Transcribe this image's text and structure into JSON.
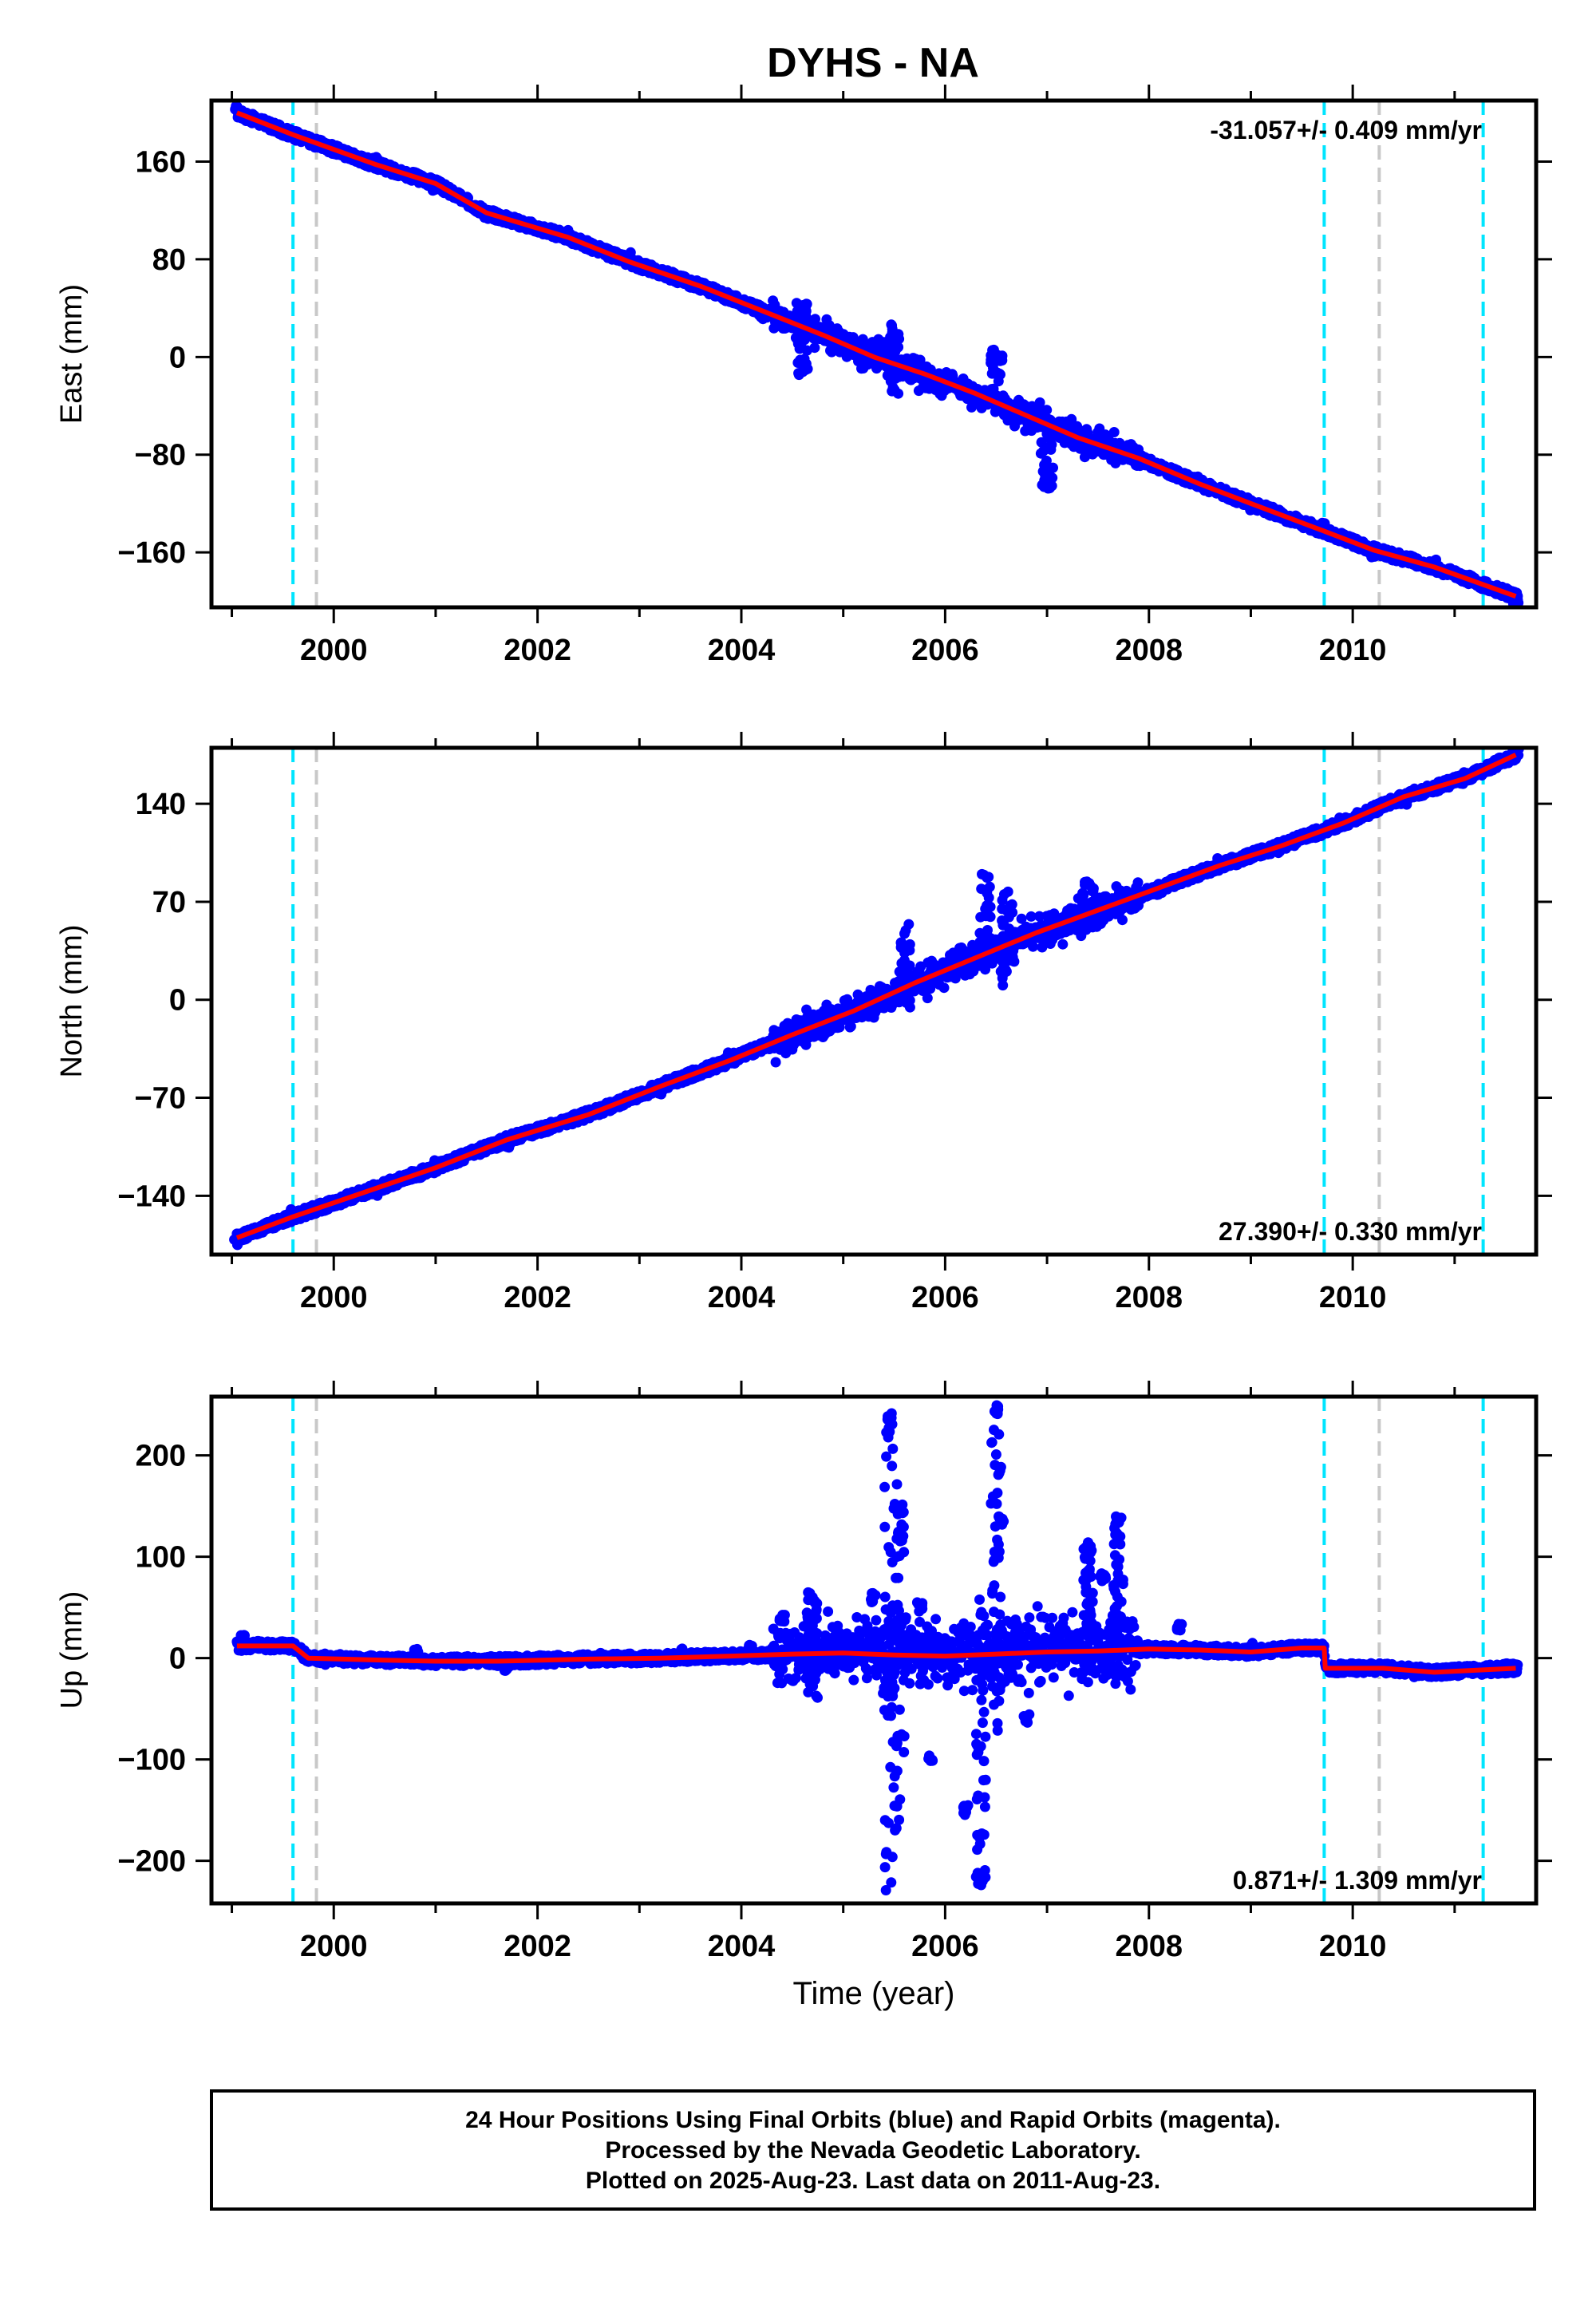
{
  "title": "DYHS - NA",
  "colors": {
    "data": "#0000ff",
    "model": "#ff0000",
    "final_line": "#00e5ff",
    "equipment_line": "#c8c8c8"
  },
  "chart_data": [
    {
      "type": "scatter",
      "name": "east",
      "ylabel": "East (mm)",
      "xlabel": "",
      "xlim": [
        1998.8,
        2011.8
      ],
      "ylim": [
        -205,
        210
      ],
      "yticks": [
        -160,
        -80,
        0,
        80,
        160
      ],
      "ytick_labels": [
        "−160",
        "−80",
        "0",
        "80",
        "160"
      ],
      "xticks": [
        2000,
        2002,
        2004,
        2006,
        2008,
        2010
      ],
      "rate_label": "-31.057+/- 0.409 mm/yr",
      "rate_position": "top-right",
      "series": [
        {
          "name": "model",
          "x": [
            1999.05,
            1999.6,
            2000.4,
            2001.0,
            2001.5,
            2002.3,
            2002.9,
            2003.6,
            2004.2,
            2004.8,
            2005.3,
            2005.8,
            2006.3,
            2006.8,
            2007.3,
            2007.9,
            2008.5,
            2009.0,
            2009.7,
            2010.2,
            2010.8,
            2011.6
          ],
          "y": [
            200,
            182,
            158,
            142,
            118,
            98,
            78,
            58,
            38,
            18,
            0,
            -14,
            -30,
            -48,
            -66,
            -83,
            -104,
            -120,
            -142,
            -158,
            -172,
            -196
          ]
        },
        {
          "name": "daily-position",
          "x": [
            1999.05,
            1999.6,
            2000.4,
            2001.0,
            2001.5,
            2002.3,
            2002.9,
            2003.6,
            2004.2,
            2004.8,
            2005.3,
            2005.8,
            2006.3,
            2006.8,
            2007.3,
            2007.9,
            2008.5,
            2009.0,
            2009.7,
            2010.2,
            2010.8,
            2011.6
          ],
          "y": [
            205,
            184,
            160,
            140,
            116,
            100,
            82,
            57,
            35,
            22,
            2,
            -12,
            -33,
            -46,
            -64,
            -85,
            -102,
            -122,
            -140,
            -160,
            -170,
            -198
          ]
        }
      ],
      "final_orbit_lines": [
        1999.6,
        2009.72,
        2011.28
      ],
      "equipment_lines": [
        1999.83,
        2010.26
      ]
    },
    {
      "type": "scatter",
      "name": "north",
      "ylabel": "North (mm)",
      "xlabel": "",
      "xlim": [
        1998.8,
        2011.8
      ],
      "ylim": [
        -182,
        180
      ],
      "yticks": [
        -140,
        -70,
        0,
        70,
        140
      ],
      "ytick_labels": [
        "−140",
        "−70",
        "0",
        "70",
        "140"
      ],
      "xticks": [
        2000,
        2002,
        2004,
        2006,
        2008,
        2010
      ],
      "rate_label": "27.390+/- 0.330 mm/yr",
      "rate_position": "bottom-right",
      "series": [
        {
          "name": "model",
          "x": [
            1999.05,
            1999.6,
            2000.4,
            2001.0,
            2001.7,
            2002.5,
            2003.2,
            2003.9,
            2004.5,
            2005.1,
            2005.7,
            2006.3,
            2006.9,
            2007.5,
            2008.1,
            2008.7,
            2009.3,
            2009.9,
            2010.5,
            2011.1,
            2011.6
          ],
          "y": [
            -170,
            -155,
            -135,
            -120,
            -100,
            -82,
            -62,
            -43,
            -25,
            -8,
            12,
            30,
            48,
            64,
            80,
            96,
            110,
            126,
            145,
            158,
            175
          ]
        },
        {
          "name": "daily-position",
          "x": [
            1999.05,
            1999.6,
            2000.4,
            2001.0,
            2001.7,
            2002.5,
            2003.2,
            2003.9,
            2004.5,
            2005.1,
            2005.7,
            2006.3,
            2006.9,
            2007.5,
            2008.1,
            2008.7,
            2009.3,
            2009.9,
            2010.5,
            2011.1,
            2011.6
          ],
          "y": [
            -172,
            -153,
            -137,
            -118,
            -102,
            -80,
            -64,
            -41,
            -27,
            -6,
            14,
            32,
            46,
            66,
            78,
            98,
            108,
            128,
            143,
            160,
            176
          ]
        }
      ],
      "final_orbit_lines": [
        1999.6,
        2009.72,
        2011.28
      ],
      "equipment_lines": [
        1999.83,
        2010.26
      ]
    },
    {
      "type": "scatter",
      "name": "up",
      "ylabel": "Up (mm)",
      "xlabel": "Time (year)",
      "xlim": [
        1998.8,
        2011.8
      ],
      "ylim": [
        -242,
        258
      ],
      "yticks": [
        -200,
        -100,
        0,
        100,
        200
      ],
      "ytick_labels": [
        "−200",
        "−100",
        "0",
        "100",
        "200"
      ],
      "xticks": [
        2000,
        2002,
        2004,
        2006,
        2008,
        2010
      ],
      "rate_label": "0.871+/- 1.309 mm/yr",
      "rate_position": "bottom-right",
      "series": [
        {
          "name": "model",
          "x": [
            1999.05,
            1999.6,
            1999.75,
            2000.5,
            2001.0,
            2001.6,
            2002.5,
            2003.2,
            2003.9,
            2004.5,
            2005.0,
            2005.5,
            2006.0,
            2006.5,
            2007.0,
            2007.5,
            2008.0,
            2008.5,
            2009.0,
            2009.5,
            2009.72,
            2009.73,
            2010.3,
            2010.8,
            2011.6
          ],
          "y": [
            12,
            12,
            0,
            -2,
            -3,
            -3,
            -1,
            0,
            2,
            4,
            5,
            3,
            2,
            4,
            6,
            7,
            9,
            8,
            6,
            10,
            10,
            -10,
            -10,
            -14,
            -10
          ]
        },
        {
          "name": "daily-position",
          "x": [
            1999.1,
            1999.9,
            2000.8,
            2001.7,
            2002.6,
            2003.4,
            2004.1,
            2004.4,
            2004.7,
            2005.3,
            2005.45,
            2005.55,
            2005.75,
            2005.85,
            2006.2,
            2006.35,
            2006.5,
            2006.55,
            2006.8,
            2007.4,
            2007.55,
            2007.7,
            2008.3,
            2009.0,
            2009.9,
            2010.6,
            2011.5
          ],
          "y": [
            18,
            -4,
            4,
            -8,
            2,
            6,
            8,
            40,
            20,
            60,
            240,
            120,
            50,
            -100,
            -150,
            -220,
            245,
            135,
            -60,
            110,
            80,
            135,
            30,
            10,
            -10,
            -14,
            -8
          ]
        }
      ],
      "final_orbit_lines": [
        1999.6,
        2009.72,
        2011.28
      ],
      "equipment_lines": [
        1999.83,
        2010.26
      ]
    }
  ],
  "caption": {
    "line1": "24 Hour Positions Using Final Orbits (blue) and Rapid Orbits (magenta).",
    "line2": "Processed by the Nevada Geodetic Laboratory.",
    "line3": "Plotted on 2025-Aug-23. Last data on 2011-Aug-23."
  }
}
